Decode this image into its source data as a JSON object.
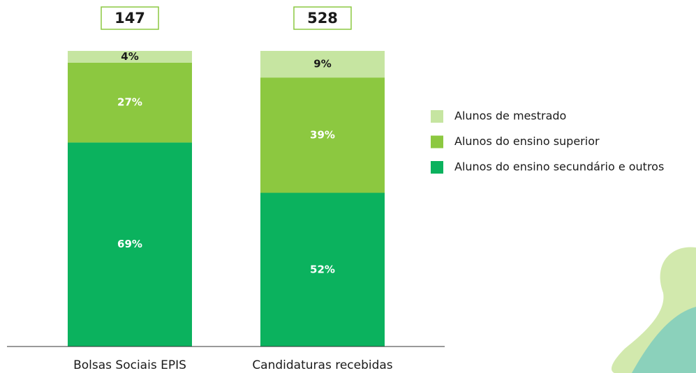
{
  "chart_data": {
    "type": "stacked-bar-100",
    "categories": [
      "Bolsas Sociais EPIS",
      "Candidaturas recebidas"
    ],
    "totals": [
      147,
      528
    ],
    "ylim": [
      0,
      100
    ],
    "series": [
      {
        "name": "Alunos de mestrado",
        "color": "#c6e5a1",
        "values": [
          4,
          9
        ],
        "value_labels": [
          "4%",
          "9%"
        ]
      },
      {
        "name": "Alunos do ensino superior",
        "color": "#8cc840",
        "values": [
          27,
          39
        ],
        "value_labels": [
          "27%",
          "39%"
        ]
      },
      {
        "name": "Alunos do ensino secundário e outros",
        "color": "#0bb25e",
        "values": [
          69,
          52
        ],
        "value_labels": [
          "69%",
          "52%"
        ]
      }
    ]
  }
}
